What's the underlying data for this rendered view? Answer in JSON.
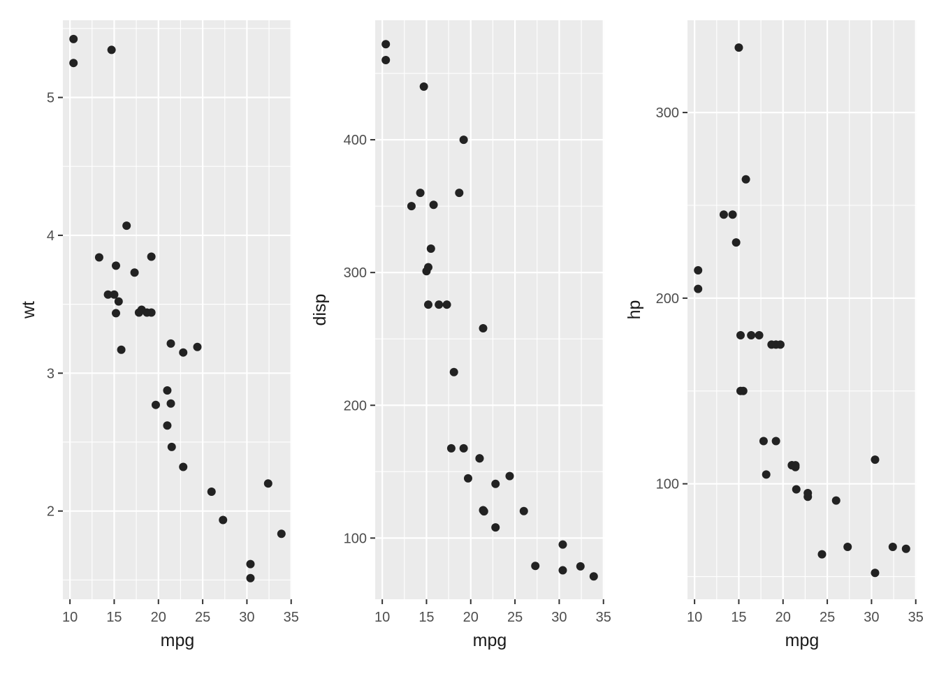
{
  "chart_data": [
    {
      "type": "scatter",
      "xlabel": "mpg",
      "ylabel": "wt",
      "xlim": [
        9.2,
        35.1
      ],
      "ylim": [
        1.36,
        5.56
      ],
      "xticks": [
        10,
        15,
        20,
        25,
        30,
        35
      ],
      "yticks": [
        2,
        3,
        4,
        5
      ],
      "grid": true,
      "point_color": "#222222",
      "panel_color": "#ebebeb",
      "points": [
        {
          "x": 21.0,
          "y": 2.62
        },
        {
          "x": 21.0,
          "y": 2.875
        },
        {
          "x": 22.8,
          "y": 2.32
        },
        {
          "x": 21.4,
          "y": 3.215
        },
        {
          "x": 18.7,
          "y": 3.44
        },
        {
          "x": 18.1,
          "y": 3.46
        },
        {
          "x": 14.3,
          "y": 3.57
        },
        {
          "x": 24.4,
          "y": 3.19
        },
        {
          "x": 22.8,
          "y": 3.15
        },
        {
          "x": 19.2,
          "y": 3.44
        },
        {
          "x": 17.8,
          "y": 3.44
        },
        {
          "x": 16.4,
          "y": 4.07
        },
        {
          "x": 17.3,
          "y": 3.73
        },
        {
          "x": 15.2,
          "y": 3.78
        },
        {
          "x": 10.4,
          "y": 5.25
        },
        {
          "x": 10.4,
          "y": 5.424
        },
        {
          "x": 14.7,
          "y": 5.345
        },
        {
          "x": 32.4,
          "y": 2.2
        },
        {
          "x": 30.4,
          "y": 1.615
        },
        {
          "x": 33.9,
          "y": 1.835
        },
        {
          "x": 21.5,
          "y": 2.465
        },
        {
          "x": 15.5,
          "y": 3.52
        },
        {
          "x": 15.2,
          "y": 3.435
        },
        {
          "x": 13.3,
          "y": 3.84
        },
        {
          "x": 19.2,
          "y": 3.845
        },
        {
          "x": 27.3,
          "y": 1.935
        },
        {
          "x": 26.0,
          "y": 2.14
        },
        {
          "x": 30.4,
          "y": 1.513
        },
        {
          "x": 15.8,
          "y": 3.17
        },
        {
          "x": 19.7,
          "y": 2.77
        },
        {
          "x": 15.0,
          "y": 3.57
        },
        {
          "x": 21.4,
          "y": 2.78
        }
      ]
    },
    {
      "type": "scatter",
      "xlabel": "mpg",
      "ylabel": "disp",
      "xlim": [
        9.2,
        35.1
      ],
      "ylim": [
        53.9,
        490
      ],
      "xticks": [
        10,
        15,
        20,
        25,
        30,
        35
      ],
      "yticks": [
        100,
        200,
        300,
        400
      ],
      "grid": true,
      "point_color": "#222222",
      "panel_color": "#ebebeb",
      "points": [
        {
          "x": 21.0,
          "y": 160
        },
        {
          "x": 21.0,
          "y": 160
        },
        {
          "x": 22.8,
          "y": 108
        },
        {
          "x": 21.4,
          "y": 258
        },
        {
          "x": 18.7,
          "y": 360
        },
        {
          "x": 18.1,
          "y": 225
        },
        {
          "x": 14.3,
          "y": 360
        },
        {
          "x": 24.4,
          "y": 146.7
        },
        {
          "x": 22.8,
          "y": 140.8
        },
        {
          "x": 19.2,
          "y": 167.6
        },
        {
          "x": 17.8,
          "y": 167.6
        },
        {
          "x": 16.4,
          "y": 275.8
        },
        {
          "x": 17.3,
          "y": 275.8
        },
        {
          "x": 15.2,
          "y": 275.8
        },
        {
          "x": 10.4,
          "y": 472
        },
        {
          "x": 10.4,
          "y": 460
        },
        {
          "x": 14.7,
          "y": 440
        },
        {
          "x": 32.4,
          "y": 78.7
        },
        {
          "x": 30.4,
          "y": 75.7
        },
        {
          "x": 33.9,
          "y": 71.1
        },
        {
          "x": 21.5,
          "y": 120.1
        },
        {
          "x": 15.5,
          "y": 318
        },
        {
          "x": 15.2,
          "y": 304
        },
        {
          "x": 13.3,
          "y": 350
        },
        {
          "x": 19.2,
          "y": 400
        },
        {
          "x": 27.3,
          "y": 79
        },
        {
          "x": 26.0,
          "y": 120.3
        },
        {
          "x": 30.4,
          "y": 95.1
        },
        {
          "x": 15.8,
          "y": 351
        },
        {
          "x": 19.7,
          "y": 145
        },
        {
          "x": 15.0,
          "y": 301
        },
        {
          "x": 21.4,
          "y": 121
        }
      ]
    },
    {
      "type": "scatter",
      "xlabel": "mpg",
      "ylabel": "hp",
      "xlim": [
        9.2,
        35.1
      ],
      "ylim": [
        37.8,
        349.7
      ],
      "xticks": [
        10,
        15,
        20,
        25,
        30,
        35
      ],
      "yticks": [
        100,
        200,
        300
      ],
      "grid": true,
      "point_color": "#222222",
      "panel_color": "#ebebeb",
      "points": [
        {
          "x": 21.0,
          "y": 110
        },
        {
          "x": 21.0,
          "y": 110
        },
        {
          "x": 22.8,
          "y": 93
        },
        {
          "x": 21.4,
          "y": 110
        },
        {
          "x": 18.7,
          "y": 175
        },
        {
          "x": 18.1,
          "y": 105
        },
        {
          "x": 14.3,
          "y": 245
        },
        {
          "x": 24.4,
          "y": 62
        },
        {
          "x": 22.8,
          "y": 95
        },
        {
          "x": 19.2,
          "y": 123
        },
        {
          "x": 17.8,
          "y": 123
        },
        {
          "x": 16.4,
          "y": 180
        },
        {
          "x": 17.3,
          "y": 180
        },
        {
          "x": 15.2,
          "y": 180
        },
        {
          "x": 10.4,
          "y": 205
        },
        {
          "x": 10.4,
          "y": 215
        },
        {
          "x": 14.7,
          "y": 230
        },
        {
          "x": 32.4,
          "y": 66
        },
        {
          "x": 30.4,
          "y": 52
        },
        {
          "x": 33.9,
          "y": 65
        },
        {
          "x": 21.5,
          "y": 97
        },
        {
          "x": 15.5,
          "y": 150
        },
        {
          "x": 15.2,
          "y": 150
        },
        {
          "x": 13.3,
          "y": 245
        },
        {
          "x": 19.2,
          "y": 175
        },
        {
          "x": 27.3,
          "y": 66
        },
        {
          "x": 26.0,
          "y": 91
        },
        {
          "x": 30.4,
          "y": 113
        },
        {
          "x": 15.8,
          "y": 264
        },
        {
          "x": 19.7,
          "y": 175
        },
        {
          "x": 15.0,
          "y": 335
        },
        {
          "x": 21.4,
          "y": 109
        }
      ]
    }
  ]
}
